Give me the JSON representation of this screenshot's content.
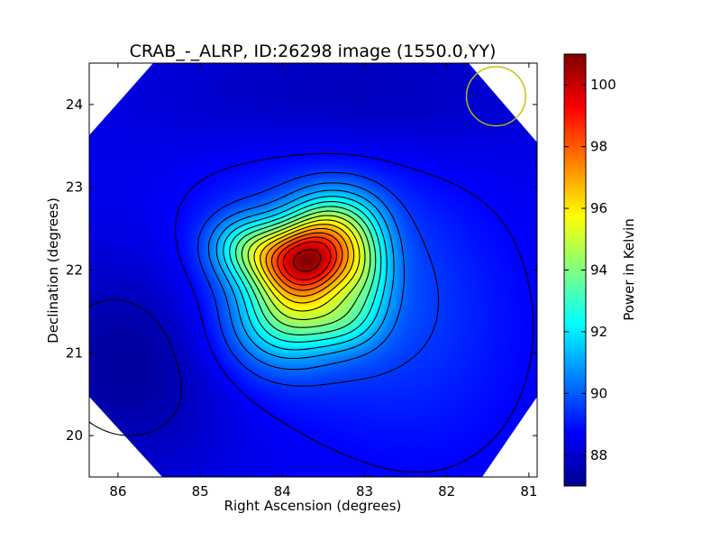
{
  "chart_data": {
    "type": "heatmap",
    "title": "CRAB_-_ALRP, ID:26298 image (1550.0,YY)",
    "xlabel": "Right Ascension (degrees)",
    "ylabel": "Declination (degrees)",
    "colorbar_label": "Power in Kelvin",
    "colormap": "jet",
    "xlim": [
      86.35,
      80.9
    ],
    "ylim": [
      19.5,
      24.5
    ],
    "x_ticks": [
      86,
      85,
      84,
      83,
      82,
      81
    ],
    "y_ticks": [
      20,
      21,
      22,
      23,
      24
    ],
    "colorbar_range": [
      87.0,
      101.0
    ],
    "colorbar_ticks": [
      88,
      90,
      92,
      94,
      96,
      98,
      100
    ],
    "background_level": 88.5,
    "peak": {
      "ra": 83.6,
      "dec": 22.1,
      "power": 100.6
    },
    "contour_levels": [
      87.8,
      88.75,
      89.5,
      90.25,
      91,
      91.75,
      92.5,
      93.25,
      94,
      94.75,
      95.5,
      96.25,
      97,
      97.75,
      98.5,
      99.25,
      100.3
    ],
    "beam_circle": {
      "ra": 81.4,
      "dec": 24.1,
      "radius_deg": 0.36,
      "color": "#bfbf00"
    },
    "grid": false,
    "legend": "none"
  }
}
